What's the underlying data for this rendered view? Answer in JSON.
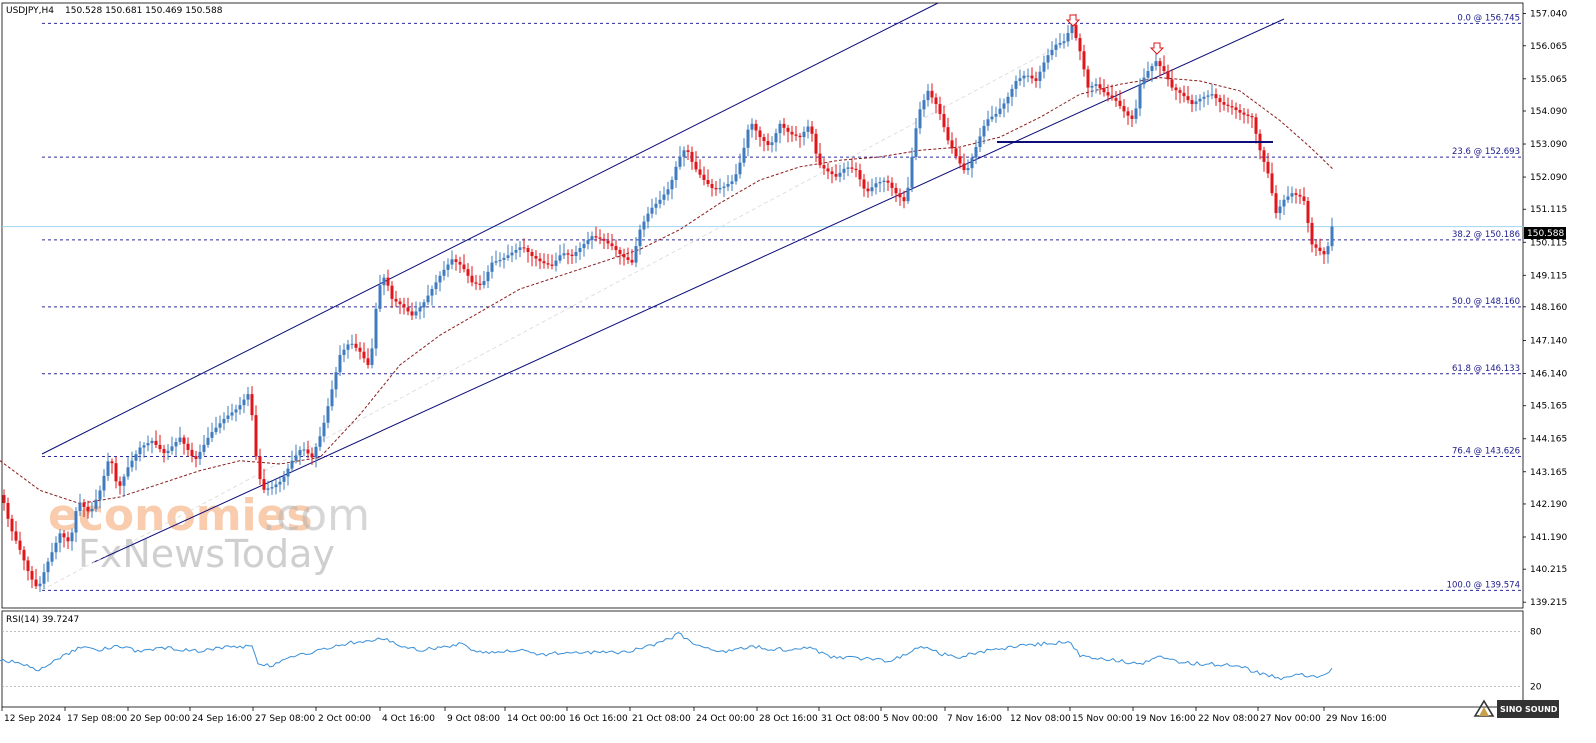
{
  "header": {
    "symbol": "USDJPY,H4",
    "ohlc": "150.528 150.681 150.469 150.588"
  },
  "rsi_header": "RSI(14) 39.7247",
  "colors": {
    "bull": "#3f7bbd",
    "bear": "#e0161b",
    "channel": "#0d0d7a",
    "fib": "#2b2b9a",
    "ma": "#8b1c1c",
    "rsi": "#3a8fd8",
    "price_line": "#9fd6f0"
  },
  "watermark": {
    "line1a": "economies",
    "line1b": ".com",
    "line2": "FxNewsToday"
  },
  "logo": "SINO SOUND",
  "current_price": "150.588",
  "fib_levels": [
    {
      "label": "0.0 @ 156.745",
      "price": 156.745
    },
    {
      "label": "23.6 @ 152.693",
      "price": 152.693
    },
    {
      "label": "38.2 @ 150.186",
      "price": 150.186
    },
    {
      "label": "50.0 @ 148.160",
      "price": 148.16
    },
    {
      "label": "61.8 @ 146.133",
      "price": 146.133
    },
    {
      "label": "76.4 @ 143.626",
      "price": 143.626
    },
    {
      "label": "100.0 @ 139.574",
      "price": 139.574
    }
  ],
  "price_axis": [
    "157.040",
    "156.065",
    "155.065",
    "154.090",
    "153.090",
    "152.090",
    "151.115",
    "150.115",
    "149.115",
    "148.160",
    "147.140",
    "146.140",
    "145.165",
    "144.165",
    "143.165",
    "142.190",
    "141.190",
    "140.215",
    "139.215"
  ],
  "rsi_axis": [
    "80",
    "20"
  ],
  "time_axis": [
    "12 Sep 2024",
    "17 Sep 08:00",
    "20 Sep 00:00",
    "24 Sep 16:00",
    "27 Sep 08:00",
    "2 Oct 00:00",
    "4 Oct 16:00",
    "9 Oct 08:00",
    "14 Oct 00:00",
    "16 Oct 16:00",
    "21 Oct 08:00",
    "24 Oct 00:00",
    "28 Oct 16:00",
    "31 Oct 08:00",
    "5 Nov 00:00",
    "7 Nov 16:00",
    "12 Nov 08:00",
    "15 Nov 00:00",
    "19 Nov 16:00",
    "22 Nov 08:00",
    "27 Nov 00:00",
    "29 Nov 16:00"
  ],
  "chart_data": {
    "type": "candlestick",
    "symbol": "USDJPY",
    "timeframe": "H4",
    "ylim": [
      139.2,
      157.3
    ],
    "rsi_ylim": [
      0,
      100
    ],
    "rsi_levels": [
      80,
      20
    ],
    "price_path": [
      [
        0,
        142.7
      ],
      [
        10,
        141.5
      ],
      [
        20,
        140.8
      ],
      [
        30,
        140.0
      ],
      [
        38,
        139.6
      ],
      [
        46,
        140.3
      ],
      [
        60,
        141.3
      ],
      [
        70,
        141.0
      ],
      [
        78,
        142.3
      ],
      [
        90,
        141.9
      ],
      [
        100,
        142.6
      ],
      [
        110,
        143.7
      ],
      [
        118,
        142.6
      ],
      [
        128,
        143.3
      ],
      [
        140,
        143.9
      ],
      [
        152,
        144.1
      ],
      [
        165,
        143.7
      ],
      [
        180,
        144.2
      ],
      [
        195,
        143.5
      ],
      [
        210,
        144.3
      ],
      [
        225,
        144.8
      ],
      [
        238,
        145.1
      ],
      [
        250,
        145.6
      ],
      [
        255,
        143.8
      ],
      [
        262,
        142.6
      ],
      [
        272,
        142.7
      ],
      [
        282,
        142.9
      ],
      [
        292,
        143.5
      ],
      [
        302,
        143.9
      ],
      [
        312,
        143.6
      ],
      [
        322,
        144.4
      ],
      [
        330,
        145.4
      ],
      [
        340,
        146.7
      ],
      [
        350,
        147.1
      ],
      [
        360,
        146.8
      ],
      [
        370,
        146.3
      ],
      [
        378,
        148.7
      ],
      [
        385,
        149.1
      ],
      [
        392,
        148.4
      ],
      [
        402,
        148.2
      ],
      [
        412,
        147.9
      ],
      [
        422,
        148.2
      ],
      [
        432,
        148.7
      ],
      [
        442,
        149.2
      ],
      [
        452,
        149.6
      ],
      [
        462,
        149.4
      ],
      [
        472,
        148.9
      ],
      [
        482,
        148.8
      ],
      [
        492,
        149.5
      ],
      [
        502,
        149.6
      ],
      [
        512,
        149.8
      ],
      [
        522,
        150.0
      ],
      [
        532,
        149.7
      ],
      [
        542,
        149.5
      ],
      [
        552,
        149.4
      ],
      [
        562,
        149.8
      ],
      [
        572,
        149.7
      ],
      [
        582,
        150.0
      ],
      [
        592,
        150.3
      ],
      [
        602,
        150.2
      ],
      [
        612,
        150.0
      ],
      [
        622,
        149.7
      ],
      [
        632,
        149.5
      ],
      [
        640,
        150.5
      ],
      [
        650,
        151.1
      ],
      [
        660,
        151.4
      ],
      [
        670,
        151.8
      ],
      [
        678,
        152.6
      ],
      [
        686,
        153.0
      ],
      [
        694,
        152.4
      ],
      [
        704,
        152.0
      ],
      [
        714,
        151.7
      ],
      [
        724,
        151.8
      ],
      [
        734,
        152.0
      ],
      [
        742,
        152.7
      ],
      [
        750,
        153.8
      ],
      [
        760,
        153.3
      ],
      [
        770,
        153.0
      ],
      [
        780,
        153.7
      ],
      [
        790,
        153.4
      ],
      [
        800,
        153.3
      ],
      [
        810,
        153.7
      ],
      [
        818,
        152.5
      ],
      [
        826,
        152.3
      ],
      [
        836,
        152.1
      ],
      [
        846,
        152.4
      ],
      [
        856,
        152.3
      ],
      [
        866,
        151.6
      ],
      [
        876,
        151.9
      ],
      [
        886,
        152.0
      ],
      [
        896,
        151.6
      ],
      [
        906,
        151.3
      ],
      [
        912,
        152.7
      ],
      [
        918,
        154.0
      ],
      [
        928,
        154.7
      ],
      [
        938,
        154.2
      ],
      [
        948,
        153.2
      ],
      [
        958,
        152.6
      ],
      [
        966,
        152.2
      ],
      [
        976,
        153.0
      ],
      [
        986,
        153.8
      ],
      [
        996,
        154.0
      ],
      [
        1006,
        154.4
      ],
      [
        1016,
        155.0
      ],
      [
        1026,
        155.2
      ],
      [
        1036,
        155.0
      ],
      [
        1046,
        155.7
      ],
      [
        1056,
        156.1
      ],
      [
        1064,
        156.2
      ],
      [
        1072,
        156.7
      ],
      [
        1080,
        155.9
      ],
      [
        1088,
        154.8
      ],
      [
        1096,
        154.9
      ],
      [
        1106,
        154.6
      ],
      [
        1116,
        154.4
      ],
      [
        1126,
        154.0
      ],
      [
        1134,
        153.8
      ],
      [
        1140,
        154.9
      ],
      [
        1148,
        155.3
      ],
      [
        1156,
        155.6
      ],
      [
        1164,
        155.3
      ],
      [
        1172,
        154.8
      ],
      [
        1182,
        154.6
      ],
      [
        1192,
        154.3
      ],
      [
        1202,
        154.5
      ],
      [
        1212,
        154.6
      ],
      [
        1222,
        154.3
      ],
      [
        1232,
        154.2
      ],
      [
        1242,
        154.0
      ],
      [
        1252,
        153.9
      ],
      [
        1260,
        152.9
      ],
      [
        1268,
        152.2
      ],
      [
        1276,
        151.0
      ],
      [
        1284,
        151.4
      ],
      [
        1292,
        151.6
      ],
      [
        1300,
        151.5
      ],
      [
        1306,
        151.3
      ],
      [
        1310,
        150.1
      ],
      [
        1318,
        149.9
      ],
      [
        1326,
        149.7
      ],
      [
        1332,
        150.59
      ]
    ],
    "ma_path": [
      [
        0,
        143.5
      ],
      [
        40,
        142.6
      ],
      [
        80,
        142.2
      ],
      [
        120,
        142.4
      ],
      [
        160,
        142.8
      ],
      [
        200,
        143.2
      ],
      [
        240,
        143.5
      ],
      [
        280,
        143.4
      ],
      [
        320,
        143.6
      ],
      [
        360,
        144.9
      ],
      [
        400,
        146.4
      ],
      [
        440,
        147.3
      ],
      [
        480,
        148.0
      ],
      [
        520,
        148.7
      ],
      [
        560,
        149.1
      ],
      [
        600,
        149.5
      ],
      [
        640,
        149.9
      ],
      [
        680,
        150.5
      ],
      [
        720,
        151.3
      ],
      [
        760,
        152.0
      ],
      [
        800,
        152.4
      ],
      [
        840,
        152.6
      ],
      [
        880,
        152.7
      ],
      [
        920,
        152.9
      ],
      [
        960,
        153.0
      ],
      [
        1000,
        153.3
      ],
      [
        1040,
        153.9
      ],
      [
        1080,
        154.6
      ],
      [
        1120,
        154.9
      ],
      [
        1160,
        155.1
      ],
      [
        1200,
        155.0
      ],
      [
        1240,
        154.7
      ],
      [
        1280,
        153.8
      ],
      [
        1310,
        153.0
      ],
      [
        1334,
        152.3
      ]
    ],
    "rsi_path": [
      [
        0,
        50
      ],
      [
        20,
        45
      ],
      [
        40,
        38
      ],
      [
        60,
        52
      ],
      [
        80,
        62
      ],
      [
        100,
        60
      ],
      [
        120,
        64
      ],
      [
        140,
        58
      ],
      [
        160,
        63
      ],
      [
        180,
        60
      ],
      [
        200,
        58
      ],
      [
        220,
        62
      ],
      [
        240,
        63
      ],
      [
        252,
        66
      ],
      [
        258,
        45
      ],
      [
        270,
        42
      ],
      [
        290,
        52
      ],
      [
        310,
        56
      ],
      [
        330,
        62
      ],
      [
        350,
        68
      ],
      [
        370,
        70
      ],
      [
        380,
        74
      ],
      [
        400,
        64
      ],
      [
        420,
        60
      ],
      [
        440,
        63
      ],
      [
        460,
        66
      ],
      [
        480,
        57
      ],
      [
        500,
        58
      ],
      [
        520,
        59
      ],
      [
        540,
        54
      ],
      [
        560,
        57
      ],
      [
        580,
        56
      ],
      [
        600,
        58
      ],
      [
        620,
        56
      ],
      [
        640,
        62
      ],
      [
        660,
        67
      ],
      [
        680,
        78
      ],
      [
        690,
        68
      ],
      [
        710,
        60
      ],
      [
        730,
        58
      ],
      [
        750,
        64
      ],
      [
        770,
        61
      ],
      [
        790,
        60
      ],
      [
        810,
        62
      ],
      [
        830,
        52
      ],
      [
        850,
        51
      ],
      [
        870,
        50
      ],
      [
        890,
        48
      ],
      [
        910,
        56
      ],
      [
        920,
        65
      ],
      [
        940,
        56
      ],
      [
        960,
        52
      ],
      [
        980,
        58
      ],
      [
        1000,
        60
      ],
      [
        1020,
        64
      ],
      [
        1040,
        66
      ],
      [
        1060,
        68
      ],
      [
        1070,
        69
      ],
      [
        1080,
        54
      ],
      [
        1100,
        50
      ],
      [
        1120,
        48
      ],
      [
        1140,
        44
      ],
      [
        1160,
        52
      ],
      [
        1180,
        46
      ],
      [
        1200,
        45
      ],
      [
        1220,
        44
      ],
      [
        1240,
        42
      ],
      [
        1260,
        34
      ],
      [
        1270,
        32
      ],
      [
        1280,
        28
      ],
      [
        1290,
        32
      ],
      [
        1300,
        34
      ],
      [
        1310,
        30
      ],
      [
        1320,
        30
      ],
      [
        1330,
        37
      ],
      [
        1334,
        39.7
      ]
    ]
  }
}
